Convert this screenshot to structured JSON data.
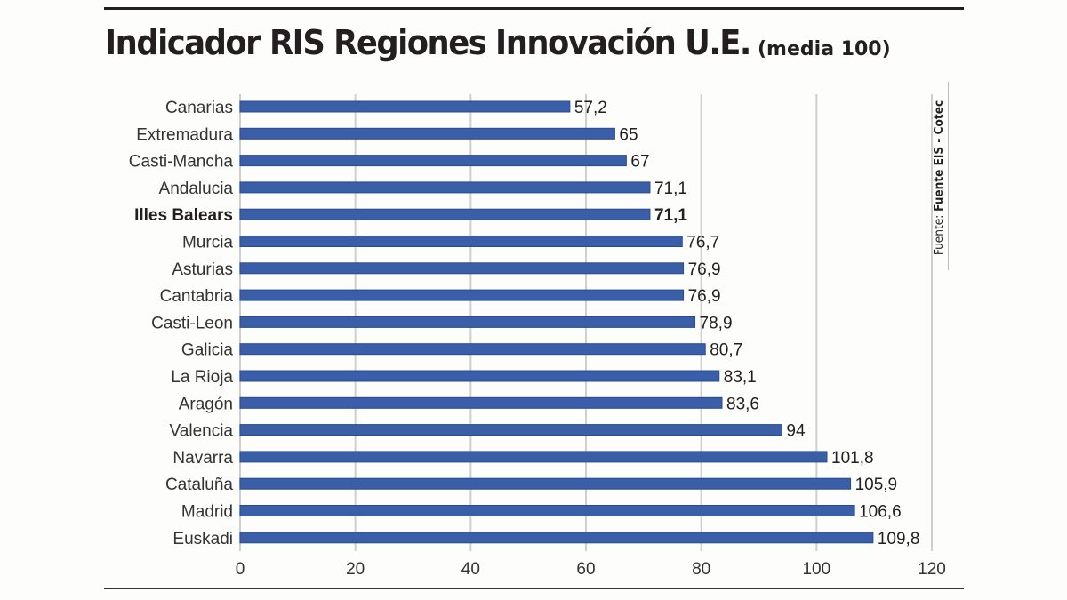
{
  "title": {
    "main": "Indicador RIS Regiones Innovación U.E.",
    "sub": "(media  100)"
  },
  "source": {
    "prefix": "Fuente: ",
    "name": "Fuente EIS - Cotec"
  },
  "colors": {
    "bar": "#3a5fa8",
    "bar_edge": "#2a4b8e",
    "grid": "#cfcfcf",
    "text": "#231f20"
  },
  "chart_data": {
    "type": "bar",
    "orientation": "horizontal",
    "title": "Indicador RIS Regiones Innovación U.E. (media 100)",
    "xlabel": "",
    "ylabel": "",
    "xlim": [
      0,
      120
    ],
    "xticks": [
      0,
      20,
      40,
      60,
      80,
      100,
      120
    ],
    "grid": true,
    "highlight": "Illes Balears",
    "categories": [
      "Canarias",
      "Extremadura",
      "Casti-Mancha",
      "Andalucia",
      "Illes Balears",
      "Murcia",
      "Asturias",
      "Cantabria",
      "Casti-Leon",
      "Galicia",
      "La Rioja",
      "Aragón",
      "Valencia",
      "Navarra",
      "Cataluña",
      "Madrid",
      "Euskadi"
    ],
    "values": [
      57.2,
      65,
      67,
      71.1,
      71.1,
      76.7,
      76.9,
      76.9,
      78.9,
      80.7,
      83.1,
      83.6,
      94,
      101.8,
      105.9,
      106.6,
      109.8
    ],
    "value_labels": [
      "57,2",
      "65",
      "67",
      "71,1",
      "71,1",
      "76,7",
      "76,9",
      "76,9",
      "78,9",
      "80,7",
      "83,1",
      "83,6",
      "94",
      "101,8",
      "105,9",
      "106,6",
      "109,8"
    ]
  }
}
